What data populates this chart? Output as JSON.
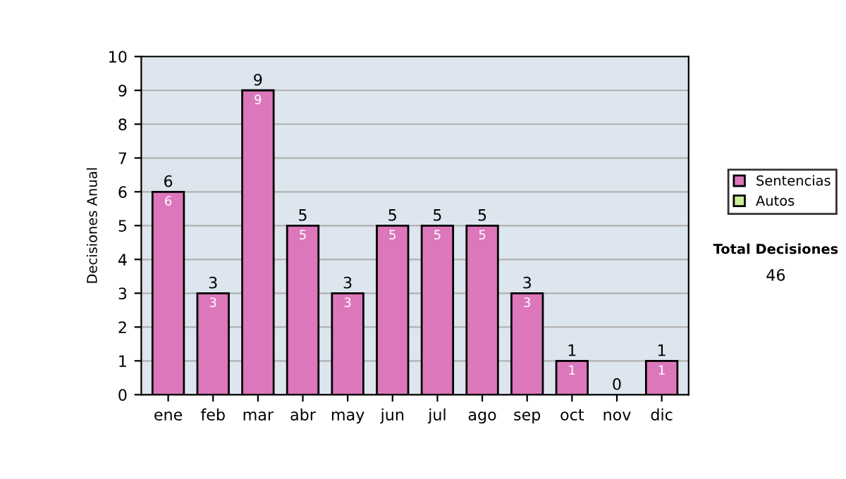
{
  "chart_data": {
    "type": "bar",
    "ylabel": "Decisiones Anual",
    "categories": [
      "ene",
      "feb",
      "mar",
      "abr",
      "may",
      "jun",
      "jul",
      "ago",
      "sep",
      "oct",
      "nov",
      "dic"
    ],
    "stacked": true,
    "series": [
      {
        "name": "Sentencias",
        "color": "#dd77bb",
        "values": [
          6,
          3,
          9,
          5,
          3,
          5,
          5,
          5,
          3,
          1,
          0,
          1
        ],
        "value_labels": [
          "6",
          "3",
          "9",
          "5",
          "3",
          "5",
          "5",
          "5",
          "3",
          "1",
          null,
          "1"
        ]
      },
      {
        "name": "Autos",
        "color": "#ccee99",
        "values": [
          null,
          null,
          null,
          null,
          null,
          null,
          null,
          null,
          null,
          null,
          null,
          null
        ]
      }
    ],
    "totals": [
      "6",
      "3",
      "9",
      "5",
      "3",
      "5",
      "5",
      "5",
      "3",
      "1",
      "0",
      "1"
    ],
    "ylim": [
      0,
      10
    ],
    "yticks": [
      0,
      1,
      2,
      3,
      4,
      5,
      6,
      7,
      8,
      9,
      10
    ],
    "grid": "y",
    "legend": "right",
    "annotations": [
      "Total Decisiones",
      "46"
    ]
  }
}
